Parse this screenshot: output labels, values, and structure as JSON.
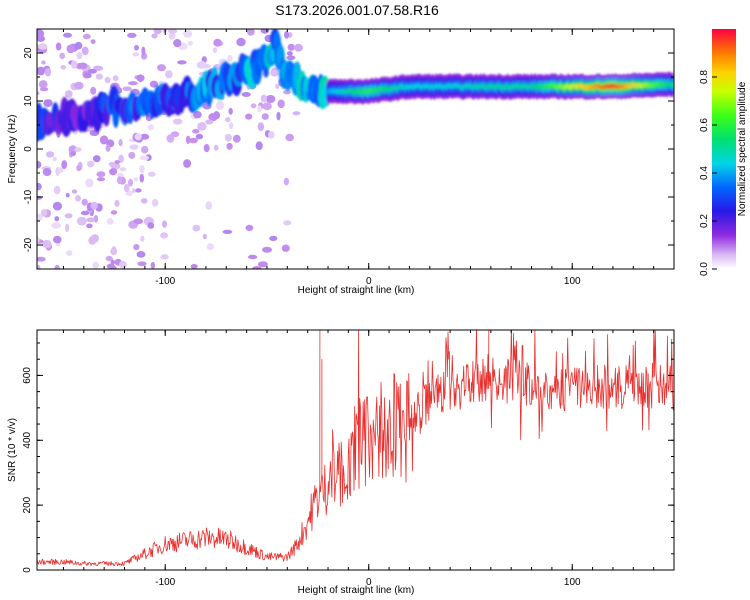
{
  "title": "S173.2026.001.07.58.R16",
  "top_panel": {
    "xlabel": "Height of straight line (km)",
    "ylabel": "Frequency (Hz)",
    "colorbar_label": "Normalized spectral amplitude",
    "x_ticks": [
      "-100",
      "0",
      "100"
    ],
    "y_ticks": [
      "-20",
      "-10",
      "0",
      "10",
      "20"
    ],
    "colorbar_ticks": [
      "0.0",
      "0.2",
      "0.4",
      "0.6",
      "0.8"
    ]
  },
  "bottom_panel": {
    "xlabel": "Height of straight line (km)",
    "ylabel": "SNR (10 * v/v)",
    "x_ticks": [
      "-100",
      "0",
      "100"
    ],
    "y_ticks": [
      "0",
      "200",
      "400",
      "600"
    ]
  },
  "colors": {
    "line": "#e8302e",
    "axis": "#000000"
  },
  "chart_data": [
    {
      "type": "heatmap",
      "title": "S173.2026.001.07.58.R16",
      "xlabel": "Height of straight line (km)",
      "ylabel": "Frequency (Hz)",
      "xlim": [
        -163,
        150
      ],
      "ylim": [
        -25,
        25
      ],
      "x_ticks": [
        -100,
        0,
        100
      ],
      "y_ticks": [
        -20,
        -10,
        0,
        10,
        20
      ],
      "colorbar": {
        "label": "Normalized spectral amplitude",
        "range": [
          0,
          1
        ],
        "ticks": [
          0.0,
          0.2,
          0.4,
          0.6,
          0.8
        ]
      },
      "ridge": {
        "x": [
          -163,
          -150,
          -140,
          -130,
          -120,
          -110,
          -100,
          -90,
          -80,
          -70,
          -60,
          -50,
          -45,
          -40,
          -30,
          -20,
          -10,
          0,
          20,
          40,
          60,
          80,
          100,
          120,
          150
        ],
        "freq": [
          5,
          7,
          7,
          8,
          9,
          9,
          10,
          11,
          12,
          14,
          16,
          19,
          22,
          15,
          13,
          12,
          12,
          12,
          13,
          13,
          13,
          13,
          13,
          13,
          13.5
        ],
        "amplitude": [
          0.25,
          0.2,
          0.2,
          0.25,
          0.3,
          0.3,
          0.3,
          0.3,
          0.35,
          0.3,
          0.35,
          0.4,
          0.35,
          0.35,
          0.5,
          0.4,
          0.5,
          0.6,
          0.45,
          0.45,
          0.5,
          0.5,
          0.75,
          0.95,
          0.5
        ]
      }
    },
    {
      "type": "line",
      "xlabel": "Height of straight line (km)",
      "ylabel": "SNR (10 * v/v)",
      "xlim": [
        -163,
        150
      ],
      "ylim": [
        0,
        740
      ],
      "x_ticks": [
        -100,
        0,
        100
      ],
      "y_ticks": [
        0,
        200,
        400,
        600
      ],
      "series": [
        {
          "name": "SNR",
          "x": [
            -163,
            -150,
            -140,
            -130,
            -120,
            -110,
            -100,
            -90,
            -80,
            -70,
            -60,
            -50,
            -40,
            -35,
            -30,
            -25,
            -20,
            -15,
            -10,
            -5,
            0,
            10,
            20,
            30,
            40,
            50,
            60,
            70,
            80,
            90,
            100,
            110,
            120,
            130,
            140,
            150
          ],
          "y": [
            25,
            25,
            20,
            20,
            20,
            50,
            80,
            90,
            100,
            95,
            70,
            40,
            40,
            80,
            150,
            230,
            260,
            300,
            300,
            380,
            400,
            420,
            450,
            520,
            560,
            570,
            600,
            580,
            570,
            560,
            560,
            570,
            560,
            560,
            570,
            560
          ],
          "spikes": [
            {
              "x": -24,
              "y": 740
            },
            {
              "x": -23,
              "y": 650
            },
            {
              "x": -5,
              "y": 740
            },
            {
              "x": 59,
              "y": 740
            }
          ]
        }
      ]
    }
  ]
}
